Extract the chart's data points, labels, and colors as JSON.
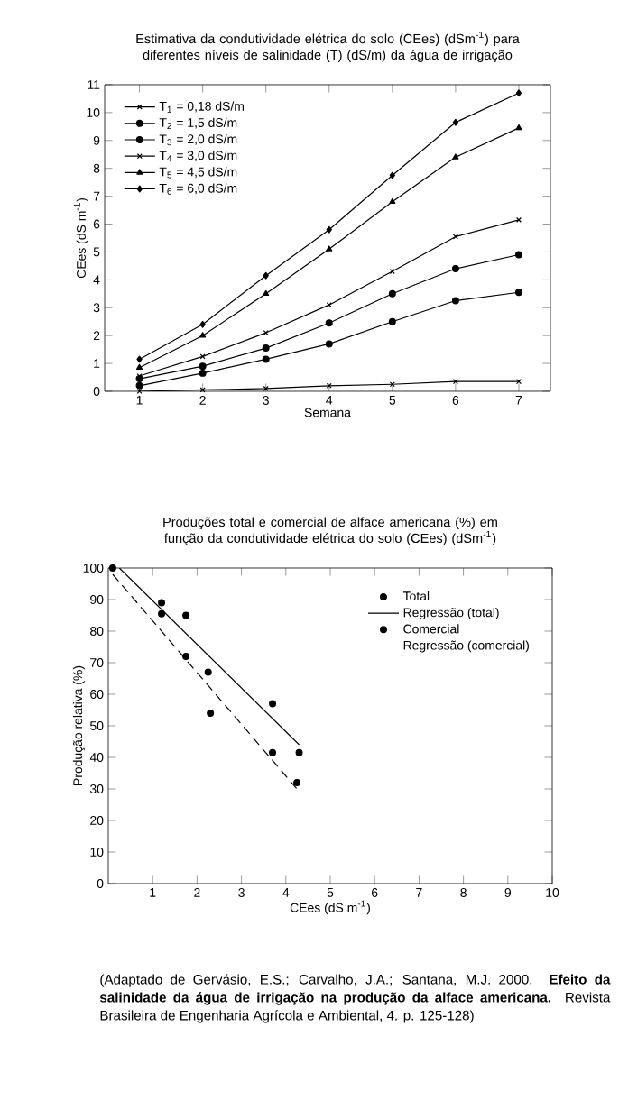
{
  "chart_data": [
    {
      "type": "line",
      "title": "Estimativa da condutividade elétrica do solo (CEes) (dSm$^{-1}$) para diferentes níveis de salinidade (T) (dS/m) da água de irrigação",
      "xlabel": "Semana",
      "ylabel": "CEes (dS m$^{-1}$)",
      "x": [
        1,
        2,
        3,
        4,
        5,
        6,
        7
      ],
      "xlim": [
        0.45,
        7.5
      ],
      "xticks": [
        1,
        2,
        3,
        4,
        5,
        6,
        7
      ],
      "ylim": [
        0,
        11
      ],
      "yticks": [
        0,
        1,
        2,
        3,
        4,
        5,
        6,
        7,
        8,
        9,
        10,
        11
      ],
      "legend": "top left",
      "series": [
        {
          "name": "T$_{1}$ = 0,18 dS/m",
          "color": "#000000",
          "marker": "cross",
          "values": [
            0.0,
            0.05,
            0.1,
            0.2,
            0.25,
            0.35,
            0.35
          ]
        },
        {
          "name": "T$_{2}$ = 1,5 dS/m",
          "color": "#000000",
          "marker": "circle",
          "values": [
            0.2,
            0.65,
            1.15,
            1.7,
            2.5,
            3.25,
            3.55
          ]
        },
        {
          "name": "T$_{3}$ = 2,0 dS/m",
          "color": "#000000",
          "marker": "circle",
          "values": [
            0.45,
            0.9,
            1.55,
            2.45,
            3.5,
            4.4,
            4.9
          ]
        },
        {
          "name": "T$_{4}$ = 3,0 dS/m",
          "color": "#000000",
          "marker": "cross",
          "values": [
            0.55,
            1.25,
            2.1,
            3.1,
            4.3,
            5.55,
            6.15
          ]
        },
        {
          "name": "T$_{5}$ = 4,5 dS/m",
          "color": "#000000",
          "marker": "triangle",
          "values": [
            0.85,
            2.0,
            3.5,
            5.1,
            6.8,
            8.4,
            9.45
          ]
        },
        {
          "name": "T$_{6}$ = 6,0 dS/m",
          "color": "#000000",
          "marker": "diamond",
          "values": [
            1.15,
            2.4,
            4.15,
            5.8,
            7.75,
            9.65,
            10.7
          ]
        }
      ]
    },
    {
      "type": "scatter",
      "title": "Produções total e comercial de alface americana (%) em função da condutividade elétrica do solo (CEes) (dSm$^{-1}$)",
      "xlabel": "CEes (dS m$^{-1}$)",
      "ylabel": "Produção relativa (%)",
      "xlim": [
        0,
        10
      ],
      "xticks": [
        1,
        2,
        3,
        4,
        5,
        6,
        7,
        8,
        9,
        10
      ],
      "ylim": [
        0,
        100
      ],
      "yticks": [
        0,
        10,
        20,
        30,
        40,
        50,
        60,
        70,
        80,
        90,
        100
      ],
      "legend": "top right",
      "annotations": [
        "(Adaptado de Gervásio, E.S.; Carvalho, J.A.; Santana, M.J. 2000. **Efeito da salinidade da água de irrigação na produção da alface americana.** Revista Brasileira de Engenharia Agrícola e Ambiental, 4. p. 125-128)"
      ],
      "series": [
        {
          "name": "Total",
          "type": "scatter",
          "color": "#000000",
          "marker": "circle",
          "x": [
            0.1,
            1.2,
            1.75,
            2.25,
            3.7,
            4.3
          ],
          "values": [
            100,
            89,
            85,
            67,
            57,
            41.5
          ]
        },
        {
          "name": "Regressão (total)",
          "type": "line",
          "color": "#000000",
          "marker": "none",
          "line_style": "solid",
          "x": [
            0.25,
            4.3
          ],
          "values": [
            100,
            44
          ]
        },
        {
          "name": "Comercial",
          "type": "scatter",
          "color": "#000000",
          "marker": "circle",
          "x": [
            1.2,
            1.75,
            2.3,
            3.7,
            4.25
          ],
          "values": [
            85.5,
            72,
            54,
            41.5,
            32
          ]
        },
        {
          "name": "Regressão (comercial)",
          "type": "line",
          "color": "#000000",
          "marker": "none",
          "line_style": "dashed",
          "x": [
            0.1,
            4.25
          ],
          "values": [
            98,
            30
          ]
        }
      ]
    }
  ]
}
